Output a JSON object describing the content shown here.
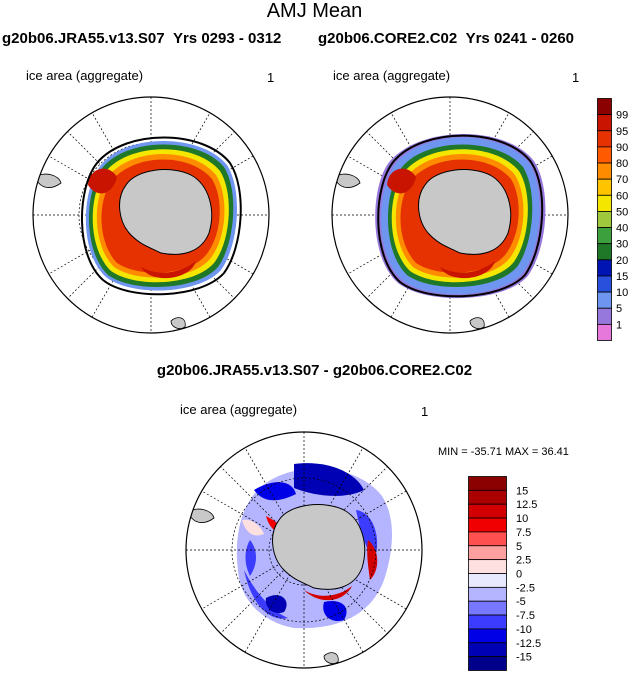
{
  "title": "AMJ Mean",
  "left_panel": {
    "run": "g20b06.JRA55.v13.S07",
    "yrs_label": "Yrs",
    "yrs_range": "0293 - 0312",
    "field": "ice area  (aggregate)",
    "units": "1"
  },
  "right_panel": {
    "run": "g20b06.CORE2.C02",
    "yrs_label": "Yrs",
    "yrs_range": "0241 - 0260",
    "field": "ice area  (aggregate)",
    "units": "1"
  },
  "diff_panel": {
    "title": "g20b06.JRA55.v13.S07 - g20b06.CORE2.C02",
    "field": "ice area  (aggregate)",
    "units": "1",
    "min_label": "MIN =",
    "min_value": "-35.71",
    "max_label": "MAX =",
    "max_value": "36.41"
  },
  "top_colorbar": {
    "labels": [
      "99",
      "95",
      "90",
      "80",
      "70",
      "60",
      "50",
      "40",
      "30",
      "20",
      "15",
      "10",
      "5",
      "1"
    ],
    "colors": [
      "#8b0000",
      "#c81400",
      "#e63200",
      "#ff5a00",
      "#ff8c00",
      "#ffc300",
      "#f5e600",
      "#a0c83c",
      "#3ca03c",
      "#1e7828",
      "#0014b4",
      "#2850dc",
      "#6e96f0",
      "#9678dc",
      "#e678dc"
    ]
  },
  "diff_colorbar": {
    "labels": [
      "15",
      "12.5",
      "10",
      "7.5",
      "5",
      "2.5",
      "0",
      "-2.5",
      "-5",
      "-7.5",
      "-10",
      "-12.5",
      "-15"
    ],
    "colors": [
      "#8b0000",
      "#aa0000",
      "#d20000",
      "#f00000",
      "#ff5050",
      "#ffa0a0",
      "#ffe0e0",
      "#e8e8ff",
      "#b4b4ff",
      "#7878ff",
      "#3c3cff",
      "#0000e6",
      "#0000b4",
      "#00008b"
    ]
  },
  "map_colors": {
    "land": "#c8c8c8",
    "ocean": "#ffffff"
  }
}
